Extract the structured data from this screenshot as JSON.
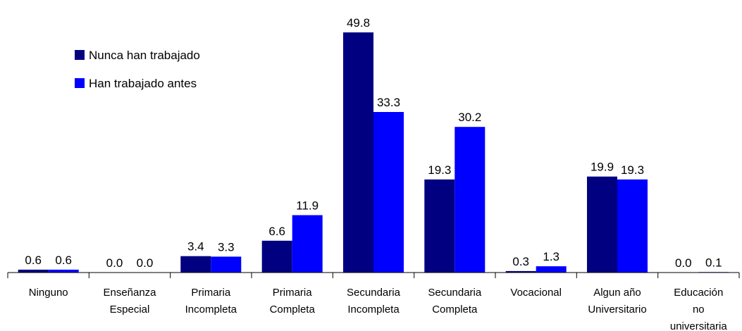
{
  "chart_data": {
    "type": "bar",
    "categories": [
      [
        "Ninguno"
      ],
      [
        "Enseñanza",
        "Especial"
      ],
      [
        "Primaria",
        "Incompleta"
      ],
      [
        "Primaria",
        "Completa"
      ],
      [
        "Secundaria",
        "Incompleta"
      ],
      [
        "Secundaria",
        "Completa"
      ],
      [
        "Vocacional"
      ],
      [
        "Algun año",
        "Universitario"
      ],
      [
        "Educación",
        "no",
        "universitaria"
      ]
    ],
    "series": [
      {
        "name": "Nunca han trabajado",
        "color": "#000080",
        "values": [
          0.6,
          0.0,
          3.4,
          6.6,
          49.8,
          19.3,
          0.3,
          19.9,
          0.0
        ],
        "labels": [
          "0.6",
          "0.0",
          "3.4",
          "6.6",
          "49.8",
          "19.3",
          "0.3",
          "19.9",
          "0.0"
        ]
      },
      {
        "name": "Han trabajado antes",
        "color": "#0000FF",
        "values": [
          0.6,
          0.0,
          3.3,
          11.9,
          33.3,
          30.2,
          1.3,
          19.3,
          0.1
        ],
        "labels": [
          "0.6",
          "0.0",
          "3.3",
          "11.9",
          "33.3",
          "30.2",
          "1.3",
          "19.3",
          "0.1"
        ]
      }
    ],
    "ylim": [
      0,
      50
    ],
    "grid": false,
    "legend_position": "top-left",
    "title": "",
    "xlabel": "",
    "ylabel": ""
  }
}
